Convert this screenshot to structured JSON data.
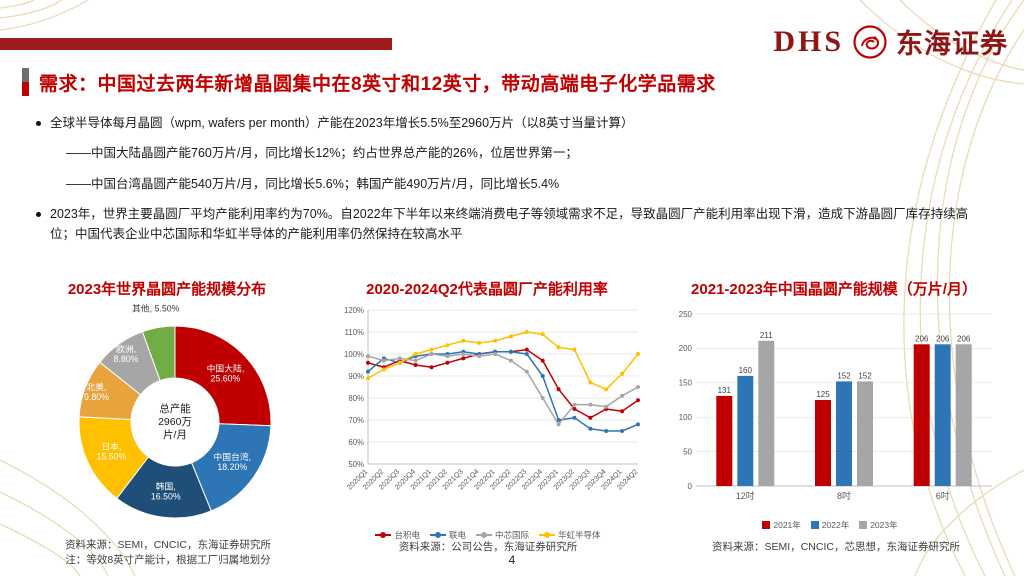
{
  "header": {
    "logo_dhs": "DHS",
    "logo_company": "东海证券",
    "title": "需求：中国过去两年新增晶圆集中在8英寸和12英寸，带动高端电子化学品需求"
  },
  "bullets": {
    "b1": "全球半导体每月晶圆（wpm, wafers per month）产能在2023年增长5.5%至2960万片（以8英寸当量计算）",
    "b1_sub1": "——中国大陆晶圆产能760万片/月，同比增长12%；约占世界总产能的26%，位居世界第一；",
    "b1_sub2": "——中国台湾晶圆产能540万片/月，同比增长5.6%；韩国产能490万片/月，同比增长5.4%",
    "b2": "2023年，世界主要晶圆厂平均产能利用率约为70%。自2022年下半年以来终端消费电子等领域需求不足，导致晶圆厂产能利用率出现下滑，造成下游晶圆厂库存持续高位；中国代表企业中芯国际和华虹半导体的产能利用率仍然保持在较高水平"
  },
  "chart_data": [
    {
      "type": "pie",
      "title": "2023年世界晶圆产能规模分布",
      "center_label": [
        "总产能",
        "2960万",
        "片/月"
      ],
      "slices": [
        {
          "label": "中国大陆",
          "value": 25.6,
          "color": "#C00000"
        },
        {
          "label": "中国台湾",
          "value": 18.2,
          "color": "#2E75B6"
        },
        {
          "label": "韩国",
          "value": 16.5,
          "color": "#1F4E79"
        },
        {
          "label": "日本",
          "value": 15.5,
          "color": "#FFC000"
        },
        {
          "label": "北美",
          "value": 9.8,
          "color": "#E8A33D"
        },
        {
          "label": "欧洲",
          "value": 8.8,
          "color": "#A6A6A6"
        },
        {
          "label": "其他",
          "value": 5.5,
          "color": "#70AD47"
        }
      ]
    },
    {
      "type": "line",
      "title": "2020-2024Q2代表晶圆厂产能利用率",
      "x": [
        "2020Q1",
        "2020Q2",
        "2020Q3",
        "2020Q4",
        "2021Q1",
        "2021Q2",
        "2021Q3",
        "2021Q4",
        "2022Q1",
        "2022Q2",
        "2022Q3",
        "2022Q4",
        "2023Q1",
        "2023Q2",
        "2023Q3",
        "2023Q4",
        "2024Q1",
        "2024Q2"
      ],
      "ylim": [
        50,
        120
      ],
      "ytick_step": 10,
      "ylabel_format": "percent",
      "legend_position": "bottom",
      "grid": true,
      "series": [
        {
          "name": "台积电",
          "color": "#C00000",
          "values": [
            96,
            94,
            97,
            95,
            94,
            96,
            98,
            100,
            101,
            101,
            102,
            97,
            84,
            75,
            71,
            75,
            74,
            79
          ]
        },
        {
          "name": "联电",
          "color": "#2E75B6",
          "values": [
            92,
            98,
            96,
            99,
            100,
            100,
            101,
            100,
            101,
            101,
            100,
            90,
            70,
            71,
            66,
            65,
            65,
            68
          ]
        },
        {
          "name": "中芯国际",
          "color": "#A6A6A6",
          "values": [
            99,
            97,
            98,
            97,
            100,
            99,
            100,
            99,
            100,
            97,
            92,
            80,
            68,
            77,
            77,
            76,
            81,
            85
          ]
        },
        {
          "name": "华虹半导体",
          "color": "#FFC000",
          "values": [
            89,
            93,
            96,
            100,
            102,
            104,
            106,
            105,
            106,
            108,
            110,
            109,
            103,
            102,
            87,
            84,
            91,
            100
          ]
        }
      ]
    },
    {
      "type": "bar",
      "title": "2021-2023年中国晶圆产能规模（万片/月）",
      "categories": [
        "12吋",
        "8吋",
        "6吋"
      ],
      "ylim": [
        0,
        250
      ],
      "ytick_step": 50,
      "legend_position": "bottom",
      "grid": true,
      "series": [
        {
          "name": "2021年",
          "color": "#C00000",
          "values": [
            131,
            125,
            206
          ]
        },
        {
          "name": "2022年",
          "color": "#2E75B6",
          "values": [
            160,
            152,
            206
          ]
        },
        {
          "name": "2023年",
          "color": "#A6A6A6",
          "values": [
            211,
            152,
            206
          ]
        }
      ]
    }
  ],
  "sources": {
    "pie_source": "资料来源：SEMI，CNCIC，东海证券研究所",
    "pie_note": "注：等效8英寸产能计，根据工厂归属地划分",
    "line_source": "资料来源：公司公告，东海证券研究所",
    "bar_source": "资料来源：SEMI，CNCIC，芯思想，东海证券研究所"
  },
  "page_number": "4",
  "colors": {
    "brand_red": "#C00000",
    "dark_red_bar": "#9E1B1B",
    "decor_gold": "#E6D5AC"
  }
}
